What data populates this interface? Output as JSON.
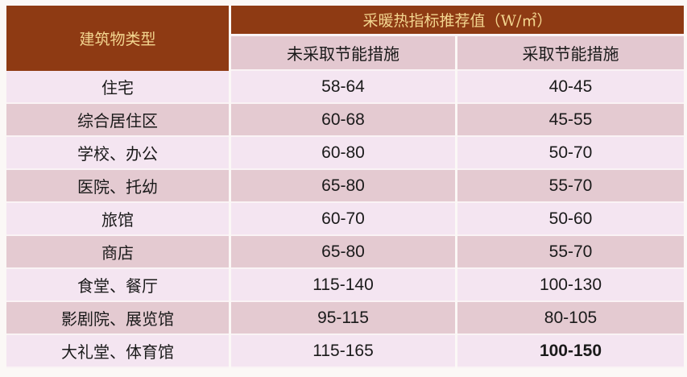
{
  "table": {
    "header_type": "建筑物类型",
    "header_group": "采暖热指标推荐值（W/㎡）",
    "header_cols": [
      "未采取节能措施",
      "采取节能措施"
    ],
    "colors": {
      "header_bg": "#8e3a13",
      "header_text": "#f3d58f",
      "row_light": "#f4e5f1",
      "row_dark": "#e4cad1"
    },
    "rows": [
      {
        "type": "住宅",
        "without": "58-64",
        "with": "40-45"
      },
      {
        "type": "综合居住区",
        "without": "60-68",
        "with": "45-55"
      },
      {
        "type": "学校、办公",
        "without": "60-80",
        "with": "50-70"
      },
      {
        "type": "医院、托幼",
        "without": "65-80",
        "with": "55-70"
      },
      {
        "type": "旅馆",
        "without": "60-70",
        "with": "50-60"
      },
      {
        "type": "商店",
        "without": "65-80",
        "with": "55-70"
      },
      {
        "type": "食堂、餐厅",
        "without": "115-140",
        "with": "100-130"
      },
      {
        "type": "影剧院、展览馆",
        "without": "95-115",
        "with": "80-105"
      },
      {
        "type": "大礼堂、体育馆",
        "without": "115-165",
        "with": "100-150"
      }
    ]
  }
}
